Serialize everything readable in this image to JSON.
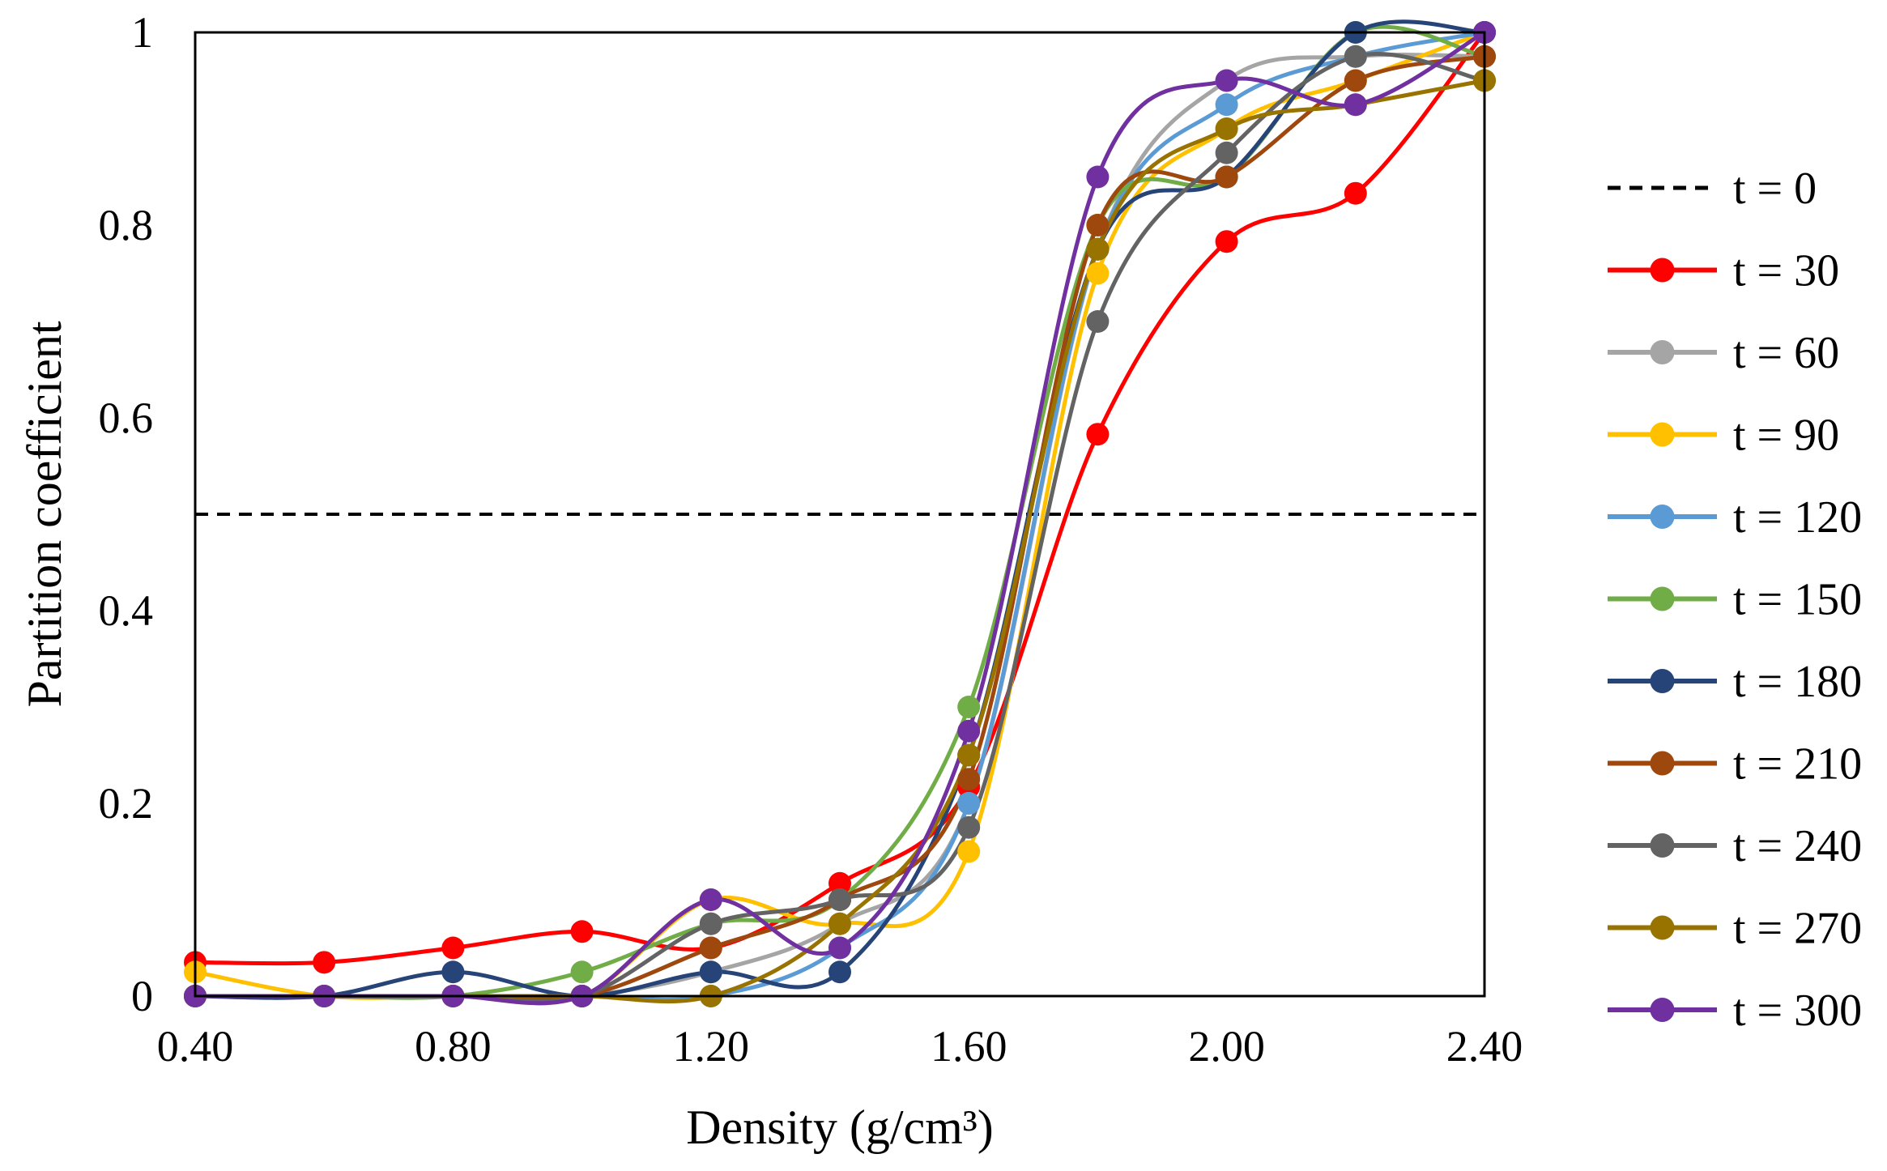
{
  "chart_data": {
    "type": "line",
    "title": "",
    "xlabel": "Density (g/cm³)",
    "ylabel": "Partition coefficient",
    "xlim": [
      0.4,
      2.4
    ],
    "ylim": [
      0,
      1
    ],
    "x_ticks": [
      0.4,
      0.8,
      1.2,
      1.6,
      2.0,
      2.4
    ],
    "x_tick_labels": [
      "0.40",
      "0.80",
      "1.20",
      "1.60",
      "2.00",
      "2.40"
    ],
    "y_ticks": [
      0,
      0.2,
      0.4,
      0.6,
      0.8,
      1
    ],
    "y_tick_labels": [
      "0",
      "0.2",
      "0.4",
      "0.6",
      "0.8",
      "1"
    ],
    "grid": false,
    "legend_position": "right",
    "x": [
      0.4,
      0.6,
      0.8,
      1.0,
      1.2,
      1.4,
      1.6,
      1.8,
      2.0,
      2.2,
      2.4
    ],
    "series": [
      {
        "name": "t = 0",
        "color": "#000000",
        "dashed": true,
        "markers": false,
        "x": [
          0.4,
          2.4
        ],
        "values": [
          0.5,
          0.5
        ]
      },
      {
        "name": "t = 30",
        "color": "#ff0000",
        "values": [
          0.035,
          0.035,
          0.05,
          0.067,
          0.05,
          0.117,
          0.217,
          0.583,
          0.783,
          0.833,
          1.0
        ]
      },
      {
        "name": "t = 60",
        "color": "#a5a5a5",
        "values": [
          0,
          0,
          0,
          0,
          0.025,
          0.075,
          0.2,
          0.775,
          0.95,
          0.975,
          0.975
        ]
      },
      {
        "name": "t = 90",
        "color": "#ffc000",
        "values": [
          0.025,
          0,
          0,
          0,
          0.1,
          0.075,
          0.15,
          0.75,
          0.9,
          0.95,
          1.0
        ]
      },
      {
        "name": "t = 120",
        "color": "#5b9bd5",
        "values": [
          0,
          0,
          0,
          0,
          0,
          0.05,
          0.2,
          0.775,
          0.925,
          0.975,
          1.0
        ]
      },
      {
        "name": "t = 150",
        "color": "#70ad47",
        "values": [
          0,
          0,
          0,
          0.025,
          0.075,
          0.1,
          0.3,
          0.8,
          0.85,
          1.0,
          0.975
        ]
      },
      {
        "name": "t = 180",
        "color": "#264478",
        "values": [
          0,
          0,
          0.025,
          0,
          0.025,
          0.025,
          0.25,
          0.775,
          0.85,
          1.0,
          1.0
        ]
      },
      {
        "name": "t = 210",
        "color": "#9e480e",
        "values": [
          0,
          0,
          0,
          0,
          0.05,
          0.1,
          0.225,
          0.8,
          0.85,
          0.95,
          0.975
        ]
      },
      {
        "name": "t = 240",
        "color": "#636363",
        "values": [
          0,
          0,
          0,
          0,
          0.075,
          0.1,
          0.175,
          0.7,
          0.875,
          0.975,
          0.95
        ]
      },
      {
        "name": "t = 270",
        "color": "#997300",
        "values": [
          0,
          0,
          0,
          0,
          0,
          0.075,
          0.25,
          0.775,
          0.9,
          0.925,
          0.95
        ]
      },
      {
        "name": "t = 300",
        "color": "#7030a0",
        "values": [
          0,
          0,
          0,
          0,
          0.1,
          0.05,
          0.275,
          0.85,
          0.95,
          0.925,
          1.0
        ]
      }
    ]
  }
}
